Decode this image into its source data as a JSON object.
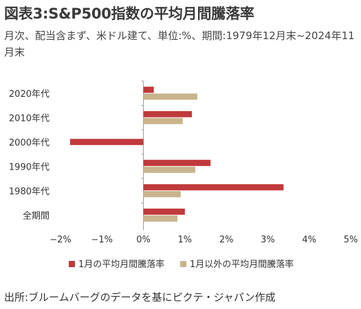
{
  "header": {
    "title": "図表3:S&P500指数の平均月間騰落率",
    "subtitle": "月次、配当含まず、米ドル建て、単位:%、期間:1979年12月末~2024年11月末"
  },
  "footer": {
    "source": "出所:ブルームバーグのデータを基にピクテ・ジャパン作成"
  },
  "chart_data": {
    "type": "bar",
    "orientation": "horizontal",
    "categories": [
      "2020年代",
      "2010年代",
      "2000年代",
      "1990年代",
      "1980年代",
      "全期間"
    ],
    "series": [
      {
        "name": "1月の平均月間騰落率",
        "color": "#c0393b",
        "values": [
          0.25,
          1.17,
          -1.77,
          1.62,
          3.38,
          1.0
        ]
      },
      {
        "name": "1月以外の平均月間騰落率",
        "color": "#c9b48d",
        "values": [
          1.3,
          0.95,
          null,
          1.25,
          0.9,
          0.82
        ]
      }
    ],
    "xlim": [
      -2,
      5
    ],
    "xticks": [
      -2,
      -1,
      0,
      1,
      2,
      3,
      4,
      5
    ],
    "xtick_labels": [
      "−2%",
      "−1%",
      "0%",
      "1%",
      "2%",
      "3%",
      "4%",
      "5%"
    ],
    "grid": false,
    "legend_position": "bottom"
  }
}
